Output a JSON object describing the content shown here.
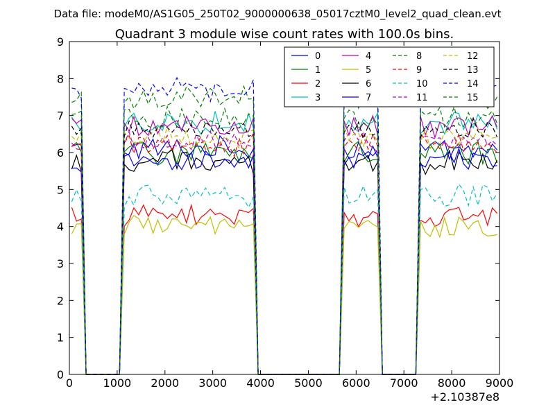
{
  "figure": {
    "suptitle": "Data file: modeM0/AS1G05_250T02_9000000638_05017cztM0_level2_quad_clean.evt"
  },
  "chart_data": {
    "type": "line",
    "title": "Quadrant 3 module wise count rates with 100.0s bins.",
    "xlabel": "",
    "ylabel": "",
    "x_offset_label": "+2.10387e8",
    "xlim": [
      0,
      9000
    ],
    "ylim": [
      0,
      9
    ],
    "xticks": [
      0,
      1000,
      2000,
      3000,
      4000,
      5000,
      6000,
      7000,
      8000,
      9000
    ],
    "yticks": [
      0,
      1,
      2,
      3,
      4,
      5,
      6,
      7,
      8,
      9
    ],
    "grid": false,
    "legend_position": "top-right",
    "legend_columns": 4,
    "segments": [
      {
        "x_start": 50,
        "x_end": 250,
        "on": true
      },
      {
        "x_start": 350,
        "x_end": 1050,
        "on": false
      },
      {
        "x_start": 1100,
        "x_end": 3850,
        "on": true
      },
      {
        "x_start": 3950,
        "x_end": 5650,
        "on": false
      },
      {
        "x_start": 5750,
        "x_end": 6450,
        "on": true
      },
      {
        "x_start": 6550,
        "x_end": 7250,
        "on": false
      },
      {
        "x_start": 7350,
        "x_end": 8950,
        "on": true
      }
    ],
    "series": [
      {
        "name": "0",
        "color": "#0000ff",
        "dash": "solid",
        "level": 6.1,
        "noise": 0.28
      },
      {
        "name": "1",
        "color": "#008000",
        "dash": "solid",
        "level": 6.0,
        "noise": 0.3
      },
      {
        "name": "2",
        "color": "#ff0000",
        "dash": "solid",
        "level": 4.3,
        "noise": 0.25
      },
      {
        "name": "3",
        "color": "#00bfbf",
        "dash": "solid",
        "level": 6.8,
        "noise": 0.28
      },
      {
        "name": "4",
        "color": "#bf00bf",
        "dash": "solid",
        "level": 6.7,
        "noise": 0.25
      },
      {
        "name": "5",
        "color": "#bfbf00",
        "dash": "solid",
        "level": 4.0,
        "noise": 0.25
      },
      {
        "name": "6",
        "color": "#000000",
        "dash": "solid",
        "level": 5.7,
        "noise": 0.3
      },
      {
        "name": "7",
        "color": "#0000ff",
        "dash": "solid",
        "level": 5.8,
        "noise": 0.28
      },
      {
        "name": "8",
        "color": "#008000",
        "dash": "dashed",
        "level": 7.5,
        "noise": 0.3
      },
      {
        "name": "9",
        "color": "#ff0000",
        "dash": "dashed",
        "level": 6.2,
        "noise": 0.25
      },
      {
        "name": "10",
        "color": "#00bfbf",
        "dash": "dashed",
        "level": 4.8,
        "noise": 0.28
      },
      {
        "name": "11",
        "color": "#bf00bf",
        "dash": "dashed",
        "level": 6.3,
        "noise": 0.25
      },
      {
        "name": "12",
        "color": "#bfbf00",
        "dash": "dashed",
        "level": 6.4,
        "noise": 0.25
      },
      {
        "name": "13",
        "color": "#000000",
        "dash": "dashed",
        "level": 6.6,
        "noise": 0.25
      },
      {
        "name": "14",
        "color": "#0000ff",
        "dash": "dashed",
        "level": 7.7,
        "noise": 0.28
      },
      {
        "name": "15",
        "color": "#008000",
        "dash": "dashed",
        "level": 6.9,
        "noise": 0.28
      }
    ]
  }
}
